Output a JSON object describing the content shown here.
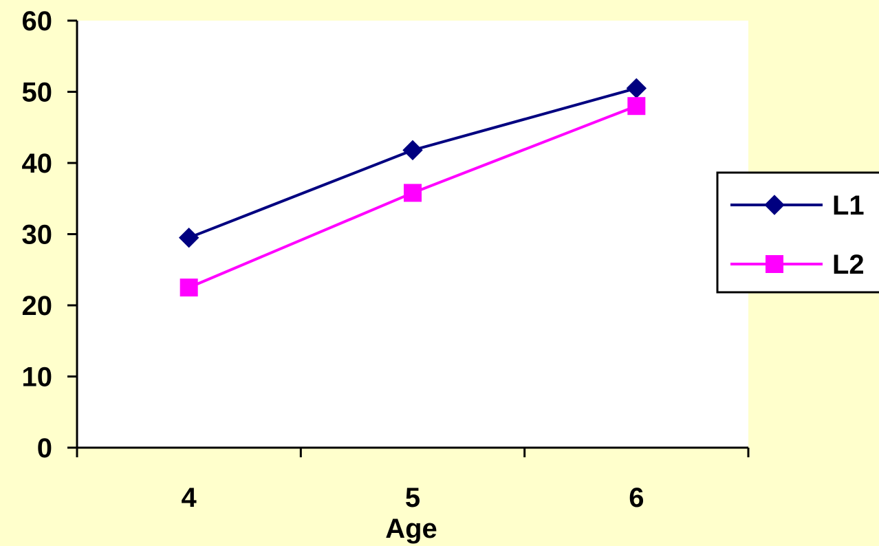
{
  "chart_data": {
    "type": "line",
    "categories": [
      "4",
      "5",
      "6"
    ],
    "xlabel": "Age",
    "ylabel": "",
    "ylim": [
      0,
      60
    ],
    "yticks": [
      0,
      10,
      20,
      30,
      40,
      50,
      60
    ],
    "series": [
      {
        "name": "L1",
        "values": [
          29.5,
          41.8,
          50.5
        ],
        "color": "#000080",
        "marker": "diamond"
      },
      {
        "name": "L2",
        "values": [
          22.5,
          35.8,
          48.0
        ],
        "color": "#FF00FF",
        "marker": "square"
      }
    ],
    "legend_position": "right",
    "grid": false
  },
  "colors": {
    "background": "#FFFFCC",
    "plot_area": "#FFFFFF"
  }
}
